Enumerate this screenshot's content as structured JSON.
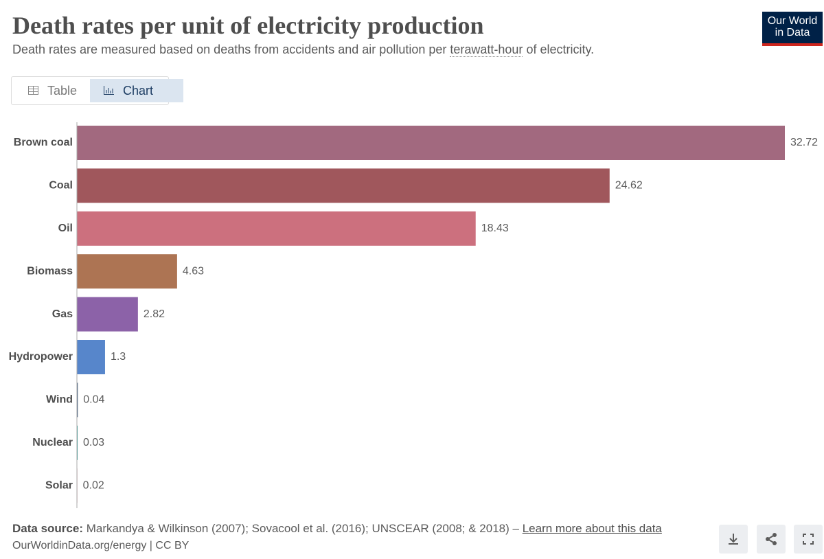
{
  "chart_data": {
    "type": "bar",
    "orientation": "horizontal",
    "title": "Death rates per unit of electricity production",
    "subtitle": [
      "Death rates are measured based on deaths from accidents and air pollution per ",
      "terawatt-hour",
      " of electricity."
    ],
    "categories": [
      "Brown coal",
      "Coal",
      "Oil",
      "Biomass",
      "Gas",
      "Hydropower",
      "Wind",
      "Nuclear",
      "Solar"
    ],
    "values": [
      32.72,
      24.62,
      18.43,
      4.63,
      2.82,
      1.3,
      0.04,
      0.03,
      0.02
    ],
    "colors": [
      "#a2697f",
      "#a0575c",
      "#cc707e",
      "#ad7453",
      "#8c62a8",
      "#5786cb",
      "#2d4a6e",
      "#00857d",
      "#c46c83"
    ]
  },
  "ui": {
    "logo": [
      "Our World",
      "in Data"
    ],
    "tabs": [
      "Table",
      "Chart"
    ],
    "source_label": "Data source:",
    "source_text": "Markandya & Wilkinson (2007); Sovacool et al. (2016); UNSCEAR (2008; & 2018) –",
    "source_link": "Learn more about this data",
    "footer": "OurWorldinData.org/energy | CC BY"
  }
}
